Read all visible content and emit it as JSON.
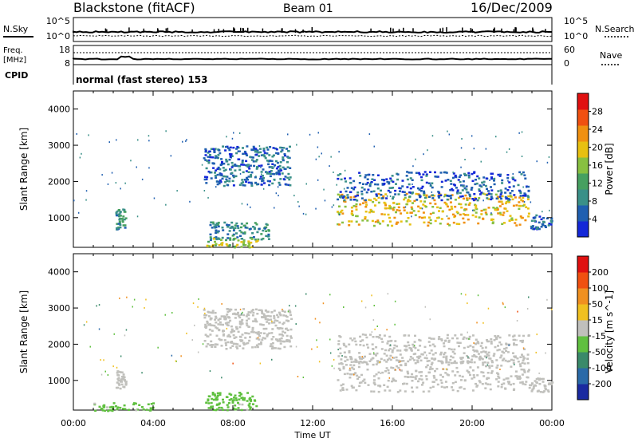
{
  "header": {
    "station": "Blackstone (fitACF)",
    "beam": "Beam 01",
    "date": "16/Dec/2009"
  },
  "nsky_panel": {
    "left_label": "N.Sky",
    "right_label": "N.Search",
    "ticks": [
      "10^5",
      "10^0"
    ]
  },
  "freq_panel": {
    "label_line1": "Freq.",
    "label_line2": "[MHz]",
    "left_ticks": [
      "18",
      "8"
    ],
    "right_ticks": [
      "60",
      "0"
    ],
    "right_label": "Nave"
  },
  "cpid_panel": {
    "label": "CPID",
    "text": "normal (fast stereo) 153"
  },
  "chart_data": [
    {
      "type": "heatmap",
      "title": "",
      "xlabel": "Time UT",
      "ylabel": "Slant Range [km]",
      "xlim": [
        0,
        24
      ],
      "ylim": [
        180,
        4500
      ],
      "x_tick_labels": [
        "00:00",
        "04:00",
        "08:00",
        "12:00",
        "16:00",
        "20:00",
        "00:00"
      ],
      "y_ticks": [
        1000,
        2000,
        3000,
        4000
      ],
      "colorbar": {
        "label": "Power [dB]",
        "range": [
          0,
          32
        ],
        "ticks": [
          "4",
          "8",
          "12",
          "16",
          "20",
          "24",
          "28"
        ],
        "colors": [
          "#1428d8",
          "#1f5fb0",
          "#3a9088",
          "#46a060",
          "#88c040",
          "#e8c010",
          "#f09010",
          "#f05010",
          "#e01010"
        ]
      },
      "regions": [
        {
          "t0": 2.1,
          "t1": 2.6,
          "r0": 700,
          "r1": 1300,
          "level": 10
        },
        {
          "t0": 6.5,
          "t1": 10.9,
          "r0": 1900,
          "r1": 3000,
          "level": 6
        },
        {
          "t0": 6.8,
          "t1": 9.8,
          "r0": 400,
          "r1": 900,
          "level": 9
        },
        {
          "t0": 6.6,
          "t1": 9.2,
          "r0": 200,
          "r1": 450,
          "level": 17
        },
        {
          "t0": 13.2,
          "t1": 22.8,
          "r0": 800,
          "r1": 1700,
          "level": 20
        },
        {
          "t0": 13.2,
          "t1": 22.8,
          "r0": 1500,
          "r1": 2300,
          "level": 5
        },
        {
          "t0": 22.8,
          "t1": 24,
          "r0": 700,
          "r1": 1100,
          "level": 6
        }
      ]
    },
    {
      "type": "heatmap",
      "title": "",
      "xlabel": "Time UT",
      "ylabel": "Slant Range [km]",
      "xlim": [
        0,
        24
      ],
      "ylim": [
        180,
        4500
      ],
      "x_tick_labels": [
        "00:00",
        "04:00",
        "08:00",
        "12:00",
        "16:00",
        "20:00",
        "00:00"
      ],
      "y_ticks": [
        1000,
        2000,
        3000,
        4000
      ],
      "colorbar": {
        "label": "Velocity [m s^-1]",
        "range": [
          -250,
          250
        ],
        "ticks": [
          "200",
          "100",
          "50",
          "15",
          "-15",
          "-50",
          "-100",
          "-200"
        ],
        "colors": [
          "#1a2aa0",
          "#2a6aa8",
          "#3a8a6a",
          "#60c040",
          "#c0c0bc",
          "#f0c020",
          "#f09020",
          "#f05010",
          "#e01010"
        ]
      },
      "regions": [
        {
          "t0": 2.1,
          "t1": 2.6,
          "r0": 800,
          "r1": 1300,
          "level": 0
        },
        {
          "t0": 6.5,
          "t1": 10.9,
          "r0": 1900,
          "r1": 3000,
          "level": 0
        },
        {
          "t0": 6.6,
          "t1": 9.2,
          "r0": 200,
          "r1": 700,
          "level": -40
        },
        {
          "t0": 1.0,
          "t1": 4.0,
          "r0": 180,
          "r1": 400,
          "level": -40
        },
        {
          "t0": 13.2,
          "t1": 22.8,
          "r0": 700,
          "r1": 1700,
          "level": 0
        },
        {
          "t0": 13.2,
          "t1": 22.8,
          "r0": 1500,
          "r1": 2300,
          "level": 5
        },
        {
          "t0": 22.8,
          "t1": 24,
          "r0": 700,
          "r1": 1100,
          "level": 0
        }
      ]
    }
  ]
}
